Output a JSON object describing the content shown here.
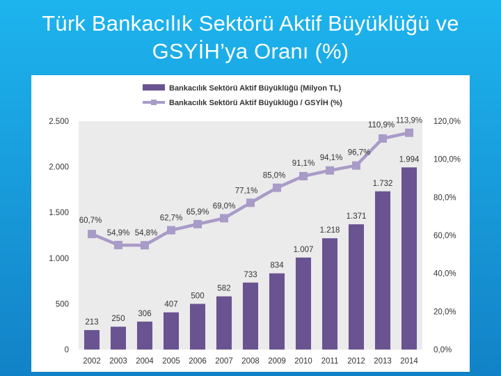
{
  "slide": {
    "title_line1": "Türk Bankacılık Sektörü Aktif Büyüklüğü ve",
    "title_line2": "GSYİH’ya Oranı (%)"
  },
  "colors": {
    "background": "#1aa3e0",
    "bar": "#6a5391",
    "line": "#a99bc8",
    "plot_bg": "#ebebeb"
  },
  "chart_data": {
    "type": "bar",
    "categories": [
      "2002",
      "2003",
      "2004",
      "2005",
      "2006",
      "2007",
      "2008",
      "2009",
      "2010",
      "2011",
      "2012",
      "2013",
      "2014"
    ],
    "series": [
      {
        "name": "Bankacılık Sektörü Aktif Büyüklüğü (Milyon TL)",
        "type": "bar",
        "axis": "left",
        "values": [
          213,
          250,
          306,
          407,
          500,
          582,
          733,
          834,
          1007,
          1218,
          1371,
          1732,
          1994
        ],
        "labels": [
          "213",
          "250",
          "306",
          "407",
          "500",
          "582",
          "733",
          "834",
          "1.007",
          "1.218",
          "1.371",
          "1.732",
          "1.994"
        ]
      },
      {
        "name": "Bankacılık Sektörü Aktif Büyüklüğü / GSYİH (%)",
        "type": "line",
        "axis": "right",
        "values": [
          60.7,
          54.9,
          54.8,
          62.7,
          65.9,
          69.0,
          77.1,
          85.0,
          91.1,
          94.1,
          96.7,
          110.9,
          113.9
        ],
        "labels": [
          "60,7%",
          "54,9%",
          "54,8%",
          "62,7%",
          "65,9%",
          "69,0%",
          "77,1%",
          "85,0%",
          "91,1%",
          "94,1%",
          "96,7%",
          "110,9%",
          "113,9%"
        ]
      }
    ],
    "y_left": {
      "ylim": [
        0,
        2500
      ],
      "ticks": [
        0,
        500,
        1000,
        1500,
        2000,
        2500
      ],
      "tick_labels": [
        "0",
        "500",
        "1.000",
        "1.500",
        "2.000",
        "2.500"
      ]
    },
    "y_right": {
      "ylim": [
        0,
        120
      ],
      "ticks": [
        0,
        20,
        40,
        60,
        80,
        100,
        120
      ],
      "tick_labels": [
        "0,0%",
        "20,0%",
        "40,0%",
        "60,0%",
        "80,0%",
        "100,0%",
        "120,0%"
      ]
    },
    "legend_position": "top",
    "grid": false
  }
}
